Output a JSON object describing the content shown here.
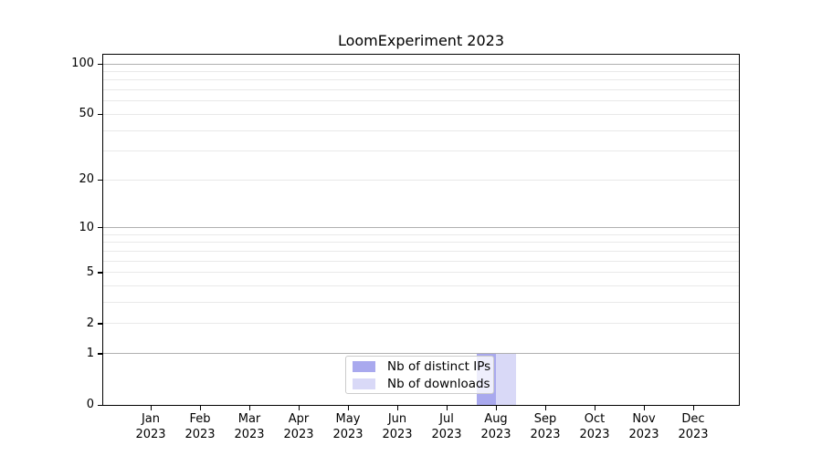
{
  "chart_data": {
    "type": "bar",
    "title": "LoomExperiment 2023",
    "categories": [
      {
        "month": "Jan",
        "year": "2023"
      },
      {
        "month": "Feb",
        "year": "2023"
      },
      {
        "month": "Mar",
        "year": "2023"
      },
      {
        "month": "Apr",
        "year": "2023"
      },
      {
        "month": "May",
        "year": "2023"
      },
      {
        "month": "Jun",
        "year": "2023"
      },
      {
        "month": "Jul",
        "year": "2023"
      },
      {
        "month": "Aug",
        "year": "2023"
      },
      {
        "month": "Sep",
        "year": "2023"
      },
      {
        "month": "Oct",
        "year": "2023"
      },
      {
        "month": "Nov",
        "year": "2023"
      },
      {
        "month": "Dec",
        "year": "2023"
      }
    ],
    "series": [
      {
        "name": "Nb of distinct IPs",
        "color": "#a9a9ee",
        "values": [
          0,
          0,
          0,
          0,
          0,
          0,
          0,
          1,
          0,
          0,
          0,
          0
        ]
      },
      {
        "name": "Nb of downloads",
        "color": "#d9d9f7",
        "values": [
          0,
          0,
          0,
          0,
          0,
          0,
          0,
          1,
          0,
          0,
          0,
          0
        ]
      }
    ],
    "xlabel": "",
    "ylabel": "",
    "yaxis": {
      "scale": "log1p",
      "ylim": [
        0,
        100
      ],
      "ticks": [
        0,
        1,
        2,
        5,
        10,
        20,
        50,
        100
      ],
      "major_gridlines": [
        1,
        10,
        100
      ],
      "minor_gridlines": [
        2,
        3,
        4,
        5,
        6,
        7,
        8,
        9,
        20,
        30,
        40,
        50,
        60,
        70,
        80,
        90
      ]
    },
    "legend": {
      "position": "lower center",
      "entries": [
        "Nb of distinct IPs",
        "Nb of downloads"
      ]
    },
    "colors": {
      "major_grid": "#b0b0b0",
      "minor_grid": "#e9e9e9",
      "spine": "#000000",
      "legend_border": "#cccccc"
    }
  }
}
